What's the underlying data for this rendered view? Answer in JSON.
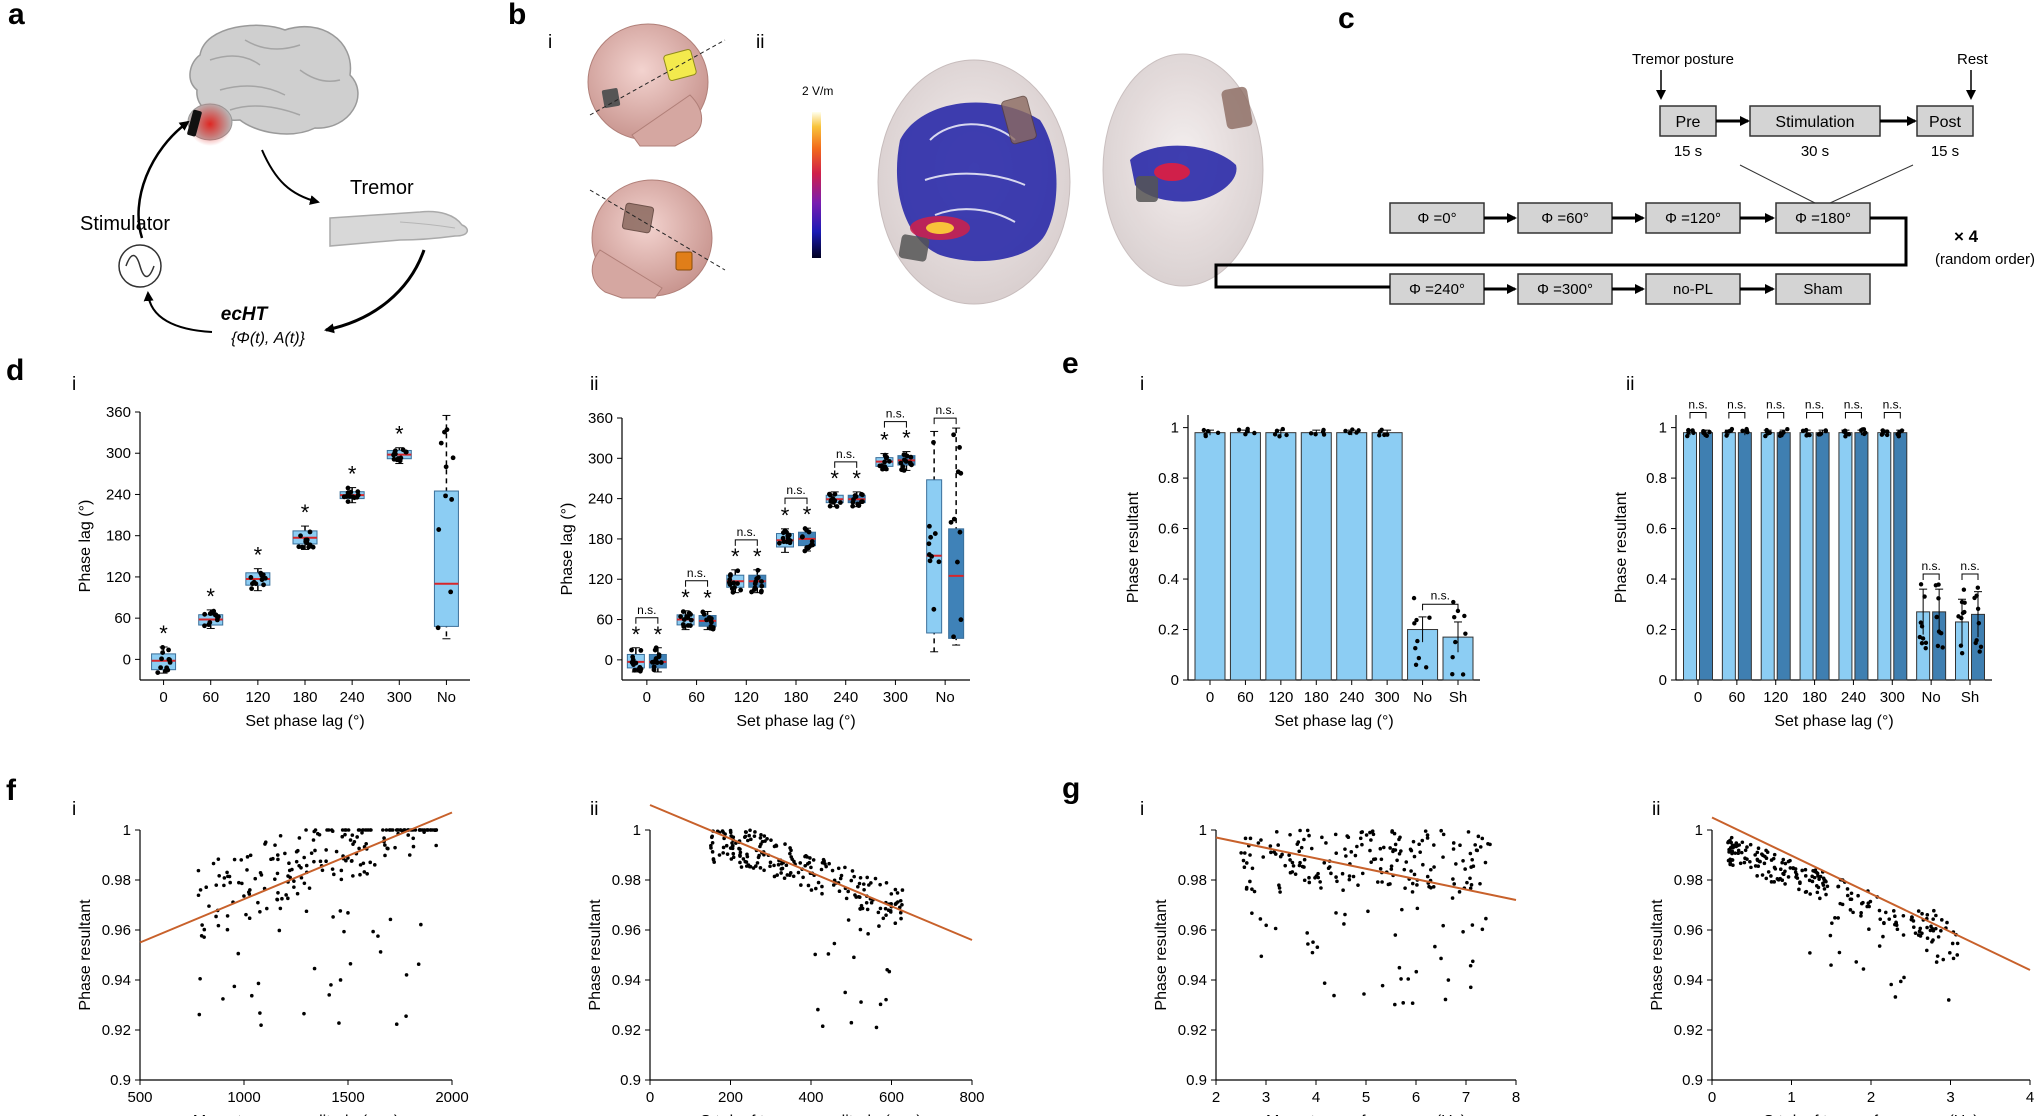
{
  "panel_labels": {
    "a": "a",
    "b": "b",
    "c": "c",
    "d": "d",
    "e": "e",
    "f": "f",
    "g": "g"
  },
  "sublabels": {
    "i": "i",
    "ii": "ii"
  },
  "panel_a": {
    "stimulator_label": "Stimulator",
    "tremor_label": "Tremor",
    "echt_label": "ecHT",
    "echt_sub": "{Φ(t), A(t)}",
    "colors": {
      "brain": "#c9c9c9",
      "hotspot": "#e0201b",
      "hand": "#cfcfcf"
    },
    "icons": [
      "brain-icon",
      "electrode-icon",
      "hand-icon",
      "sine-wave-icon"
    ]
  },
  "panel_b": {
    "colorbar_max": "2 V/m",
    "colorbar_colors": [
      "#000020",
      "#1b1bb5",
      "#7a1db0",
      "#d0204a",
      "#f26a1b",
      "#f8c33a",
      "#ffffee"
    ]
  },
  "panel_c": {
    "tremor_posture": "Tremor posture",
    "rest": "Rest",
    "pre": "Pre",
    "stimulation": "Stimulation",
    "post": "Post",
    "pre_dur": "15 s",
    "stim_dur": "30 s",
    "post_dur": "15 s",
    "row1": [
      "Φ =0°",
      "Φ =60°",
      "Φ =120°",
      "Φ =180°"
    ],
    "row2": [
      "Φ =240°",
      "Φ =300°",
      "no-PL",
      "Sham"
    ],
    "repeat": "× 4",
    "random": "(random order)"
  },
  "chart_data": [
    {
      "id": "d-i",
      "type": "box",
      "categories": [
        "0",
        "60",
        "120",
        "180",
        "240",
        "300",
        "No"
      ],
      "ylabel": "Phase lag (°)",
      "xlabel": "Set phase lag (°)",
      "ylim": [
        -30,
        360
      ],
      "yticks": [
        "0",
        "60",
        "120",
        "180",
        "240",
        "300",
        "360"
      ],
      "boxes": [
        {
          "q1": -15,
          "median": -2,
          "q3": 8,
          "lo": -20,
          "hi": 18
        },
        {
          "q1": 50,
          "median": 58,
          "q3": 65,
          "lo": 45,
          "hi": 72
        },
        {
          "q1": 108,
          "median": 117,
          "q3": 126,
          "lo": 100,
          "hi": 132
        },
        {
          "q1": 168,
          "median": 177,
          "q3": 187,
          "lo": 160,
          "hi": 194
        },
        {
          "q1": 234,
          "median": 239,
          "q3": 244,
          "lo": 228,
          "hi": 250
        },
        {
          "q1": 292,
          "median": 298,
          "q3": 304,
          "lo": 285,
          "hi": 308
        },
        {
          "q1": 48,
          "median": 110,
          "q3": 245,
          "lo": 30,
          "hi": 355
        }
      ],
      "significance": [
        "*",
        "*",
        "*",
        "*",
        "*",
        "*",
        ""
      ]
    },
    {
      "id": "d-ii",
      "type": "box",
      "categories": [
        "0",
        "60",
        "120",
        "180",
        "240",
        "300",
        "No"
      ],
      "ylabel": "Phase lag (°)",
      "xlabel": "Set phase lag (°)",
      "ylim": [
        -30,
        360
      ],
      "yticks": [
        "0",
        "60",
        "120",
        "180",
        "240",
        "300",
        "360"
      ],
      "series": [
        {
          "name": "",
          "boxes": [
            {
              "q1": -12,
              "median": -3,
              "q3": 8,
              "lo": -18,
              "hi": 18
            },
            {
              "q1": 52,
              "median": 60,
              "q3": 67,
              "lo": 45,
              "hi": 73
            },
            {
              "q1": 108,
              "median": 117,
              "q3": 126,
              "lo": 100,
              "hi": 134
            },
            {
              "q1": 168,
              "median": 178,
              "q3": 188,
              "lo": 160,
              "hi": 195
            },
            {
              "q1": 234,
              "median": 239,
              "q3": 245,
              "lo": 228,
              "hi": 250
            },
            {
              "q1": 288,
              "median": 295,
              "q3": 301,
              "lo": 282,
              "hi": 307
            },
            {
              "q1": 40,
              "median": 155,
              "q3": 268,
              "lo": 12,
              "hi": 340
            }
          ]
        },
        {
          "name": "",
          "boxes": [
            {
              "q1": -12,
              "median": -3,
              "q3": 8,
              "lo": -18,
              "hi": 18
            },
            {
              "q1": 50,
              "median": 58,
              "q3": 66,
              "lo": 45,
              "hi": 72
            },
            {
              "q1": 108,
              "median": 117,
              "q3": 126,
              "lo": 100,
              "hi": 134
            },
            {
              "q1": 170,
              "median": 180,
              "q3": 190,
              "lo": 162,
              "hi": 196
            },
            {
              "q1": 234,
              "median": 239,
              "q3": 245,
              "lo": 228,
              "hi": 250
            },
            {
              "q1": 290,
              "median": 297,
              "q3": 304,
              "lo": 282,
              "hi": 310
            },
            {
              "q1": 32,
              "median": 125,
              "q3": 195,
              "lo": 22,
              "hi": 345
            }
          ]
        }
      ],
      "significance": [
        "*",
        "*",
        "*",
        "*",
        "*",
        "*",
        ""
      ],
      "pair_labels": [
        "n.s.",
        "n.s.",
        "n.s.",
        "n.s.",
        "n.s.",
        "n.s.",
        "n.s."
      ]
    },
    {
      "id": "e-i",
      "type": "bar",
      "categories": [
        "0",
        "60",
        "120",
        "180",
        "240",
        "300",
        "No",
        "Sh"
      ],
      "values": [
        0.98,
        0.98,
        0.98,
        0.98,
        0.98,
        0.98,
        0.2,
        0.17
      ],
      "errors": [
        0.01,
        0.01,
        0.01,
        0.01,
        0.01,
        0.01,
        0.05,
        0.06
      ],
      "ylabel": "Phase resultant",
      "xlabel": "Set phase lag (°)",
      "ylim": [
        0,
        1.05
      ],
      "yticks": [
        "0",
        "0.2",
        "0.4",
        "0.6",
        "0.8",
        "1"
      ],
      "bracket_label": "n.s."
    },
    {
      "id": "e-ii",
      "type": "bar",
      "categories": [
        "0",
        "60",
        "120",
        "180",
        "240",
        "300",
        "No",
        "Sh"
      ],
      "series": [
        {
          "name": "",
          "values": [
            0.98,
            0.98,
            0.98,
            0.98,
            0.98,
            0.98,
            0.27,
            0.23
          ]
        },
        {
          "name": "",
          "values": [
            0.98,
            0.98,
            0.98,
            0.98,
            0.98,
            0.98,
            0.27,
            0.26
          ]
        }
      ],
      "ylabel": "Phase resultant",
      "xlabel": "Set phase lag (°)",
      "ylim": [
        0,
        1.05
      ],
      "yticks": [
        "0",
        "0.2",
        "0.4",
        "0.6",
        "0.8",
        "1"
      ],
      "pair_labels": [
        "n.s.",
        "n.s.",
        "n.s.",
        "n.s.",
        "n.s.",
        "n.s.",
        "n.s.",
        "n.s."
      ]
    },
    {
      "id": "f-i",
      "type": "scatter",
      "xlabel": "Mean tremor amplitude (a.u.)",
      "ylabel": "Phase resultant",
      "xlim": [
        500,
        2000
      ],
      "ylim": [
        0.9,
        1.0
      ],
      "xticks": [
        "500",
        "1000",
        "1500",
        "2000"
      ],
      "yticks": [
        "0.9",
        "0.92",
        "0.94",
        "0.96",
        "0.98",
        "1"
      ],
      "fit": {
        "x0": 500,
        "y0": 0.955,
        "x1": 2000,
        "y1": 1.007
      },
      "cloud": {
        "xmin": 750,
        "xmax": 1950,
        "note": "points cluster near 0.98–1"
      }
    },
    {
      "id": "f-ii",
      "type": "scatter",
      "xlabel": "S.t.d. of tremor amplitude (a.u.)",
      "ylabel": "Phase resultant",
      "xlim": [
        0,
        800
      ],
      "ylim": [
        0.9,
        1.0
      ],
      "xticks": [
        "0",
        "200",
        "400",
        "600",
        "800"
      ],
      "yticks": [
        "0.9",
        "0.92",
        "0.94",
        "0.96",
        "0.98",
        "1"
      ],
      "fit": {
        "x0": 0,
        "y0": 1.01,
        "x1": 800,
        "y1": 0.956
      }
    },
    {
      "id": "g-i",
      "type": "scatter",
      "xlabel": "Mean tremor frequency (Hz)",
      "ylabel": "Phase resultant",
      "xlim": [
        2,
        8
      ],
      "ylim": [
        0.9,
        1.0
      ],
      "xticks": [
        "2",
        "3",
        "4",
        "5",
        "6",
        "7",
        "8"
      ],
      "yticks": [
        "0.9",
        "0.92",
        "0.94",
        "0.96",
        "0.98",
        "1"
      ],
      "fit": {
        "x0": 2,
        "y0": 0.997,
        "x1": 8,
        "y1": 0.972
      }
    },
    {
      "id": "g-ii",
      "type": "scatter",
      "xlabel": "S.t.d. of tremor frequency (Hz)",
      "ylabel": "Phase resultant",
      "xlim": [
        0,
        4
      ],
      "ylim": [
        0.9,
        1.0
      ],
      "xticks": [
        "0",
        "1",
        "2",
        "3",
        "4"
      ],
      "yticks": [
        "0.9",
        "0.92",
        "0.94",
        "0.96",
        "0.98",
        "1"
      ],
      "fit": {
        "x0": 0,
        "y0": 1.005,
        "x1": 4,
        "y1": 0.944
      }
    }
  ],
  "colors": {
    "box_fill": "#8ccdf3",
    "box_fill_dark": "#3f82b8",
    "median": "#d6262b",
    "fit_line": "#c8612b",
    "bar_light": "#8ccdf3",
    "bar_dark": "#3f7fb1"
  }
}
